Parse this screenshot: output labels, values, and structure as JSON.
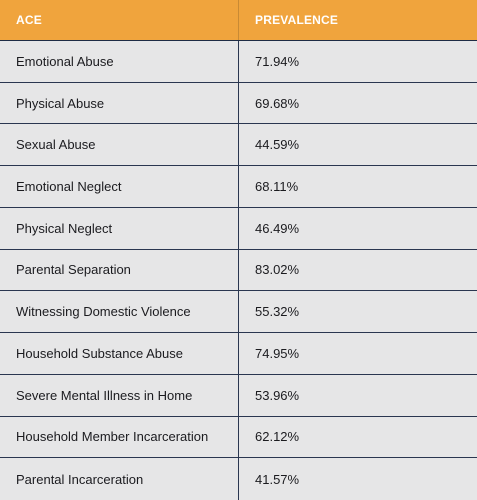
{
  "table": {
    "headers": {
      "ace": "ACE",
      "prevalence": "PREVALENCE"
    },
    "rows": [
      {
        "ace": "Emotional Abuse",
        "prevalence": "71.94%"
      },
      {
        "ace": "Physical Abuse",
        "prevalence": "69.68%"
      },
      {
        "ace": "Sexual Abuse",
        "prevalence": "44.59%"
      },
      {
        "ace": "Emotional Neglect",
        "prevalence": "68.11%"
      },
      {
        "ace": "Physical Neglect",
        "prevalence": "46.49%"
      },
      {
        "ace": "Parental Separation",
        "prevalence": "83.02%"
      },
      {
        "ace": "Witnessing Domestic Violence",
        "prevalence": "55.32%"
      },
      {
        "ace": "Household Substance Abuse",
        "prevalence": "74.95%"
      },
      {
        "ace": "Severe Mental Illness in Home",
        "prevalence": "53.96%"
      },
      {
        "ace": "Household Member Incarceration",
        "prevalence": "62.12%"
      },
      {
        "ace": "Parental Incarceration",
        "prevalence": "41.57%"
      }
    ]
  },
  "colors": {
    "header_background": "#f0a43d",
    "header_text": "#ffffff",
    "row_background": "#e6e6e7",
    "divider": "#2a3650",
    "text": "#1b1b1f"
  }
}
